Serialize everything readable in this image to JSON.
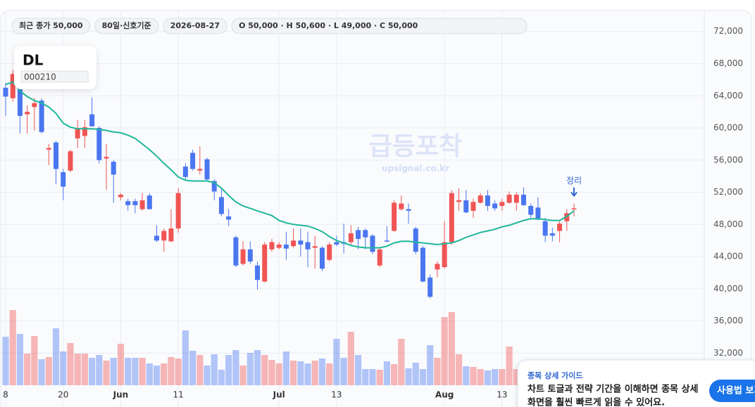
{
  "chart_data": {
    "type": "candlestick",
    "categories": [
      "8",
      null,
      null,
      null,
      null,
      null,
      null,
      null,
      "20",
      null,
      null,
      null,
      null,
      null,
      null,
      null,
      "Jun",
      null,
      null,
      null,
      null,
      null,
      null,
      null,
      "11",
      null,
      null,
      null,
      null,
      null,
      null,
      null,
      null,
      null,
      null,
      null,
      null,
      null,
      "Jul",
      null,
      null,
      null,
      null,
      null,
      null,
      null,
      "13",
      null,
      null,
      null,
      null,
      null,
      null,
      null,
      null,
      null,
      null,
      null,
      null,
      null,
      null,
      "Aug",
      null,
      null,
      null,
      null,
      null,
      null,
      null,
      "13",
      null,
      null,
      null,
      null,
      null,
      null,
      null,
      null,
      null,
      null
    ],
    "open": [
      65000,
      63700,
      65000,
      61700,
      62600,
      63400,
      57300,
      58200,
      54500,
      54700,
      58700,
      59000,
      61700,
      60000,
      56200,
      55800,
      51400,
      50900,
      50900,
      49900,
      51600,
      46600,
      46000,
      45900,
      47500,
      55200,
      56900,
      54700,
      56100,
      53400,
      51400,
      49000,
      46400,
      43100,
      44900,
      42900,
      40900,
      44900,
      45100,
      45500,
      45300,
      46000,
      45800,
      45100,
      45100,
      43600,
      45800,
      45800,
      45800,
      47300,
      47300,
      46600,
      42900,
      46000,
      47200,
      49900,
      49900,
      47500,
      45100,
      41400,
      42400,
      42700,
      45800,
      50800,
      51000,
      49700,
      50700,
      51600,
      50600,
      50300,
      50700,
      50700,
      51700,
      50300,
      50100,
      48400,
      46900,
      47200,
      48400,
      50000
    ],
    "high": [
      65600,
      67200,
      65600,
      62800,
      63700,
      63700,
      58000,
      58400,
      54900,
      57300,
      61000,
      61000,
      63800,
      60200,
      58000,
      56000,
      51900,
      51200,
      51200,
      51900,
      51900,
      47900,
      47500,
      49900,
      52500,
      55600,
      57300,
      57700,
      56300,
      53600,
      52500,
      49900,
      46600,
      45900,
      45900,
      43400,
      45800,
      46200,
      45800,
      47100,
      47500,
      47500,
      47100,
      46600,
      45300,
      45800,
      46600,
      48100,
      47900,
      47700,
      47500,
      46800,
      45100,
      47800,
      51000,
      51600,
      50600,
      47700,
      45300,
      41800,
      43400,
      48400,
      52300,
      52500,
      52300,
      51200,
      51900,
      52300,
      51000,
      51200,
      52100,
      52000,
      52600,
      50600,
      51400,
      48800,
      47600,
      48400,
      49900,
      50600
    ],
    "low": [
      61500,
      63250,
      59300,
      59300,
      59700,
      59300,
      55400,
      53000,
      51000,
      54500,
      57500,
      57500,
      60200,
      55600,
      52300,
      50700,
      51000,
      49700,
      49400,
      49700,
      49900,
      45800,
      44600,
      45800,
      47000,
      53600,
      54700,
      54200,
      53400,
      51000,
      49000,
      47800,
      42700,
      42900,
      43100,
      39900,
      40800,
      44600,
      44900,
      43600,
      45100,
      44000,
      42700,
      42500,
      42200,
      43400,
      45300,
      44400,
      45500,
      44900,
      44900,
      44300,
      42700,
      45800,
      47100,
      49700,
      48100,
      44300,
      40800,
      38800,
      41400,
      42500,
      45500,
      49700,
      49400,
      48800,
      50600,
      49700,
      49700,
      49700,
      50600,
      49700,
      50300,
      48800,
      48500,
      45800,
      45900,
      45800,
      47200,
      49000
    ],
    "close": [
      63900,
      66700,
      61500,
      62000,
      63100,
      59500,
      57500,
      54900,
      52700,
      57100,
      60000,
      60100,
      60200,
      56000,
      56400,
      54200,
      51700,
      50400,
      50400,
      51000,
      49900,
      46000,
      47200,
      47500,
      51900,
      53900,
      54900,
      54900,
      53600,
      52100,
      49300,
      48600,
      42900,
      44900,
      43400,
      41100,
      45500,
      45800,
      45500,
      45000,
      46000,
      45500,
      44900,
      45300,
      42500,
      45500,
      45500,
      45600,
      46900,
      46200,
      46400,
      44600,
      44900,
      45900,
      50700,
      50600,
      49700,
      44600,
      40900,
      39000,
      43100,
      45800,
      51900,
      51000,
      49500,
      50800,
      51600,
      50300,
      50000,
      50800,
      51700,
      51700,
      50400,
      49200,
      48600,
      46600,
      46600,
      48100,
      49400,
      50000
    ],
    "volume": [
      69,
      107,
      73,
      45,
      70,
      37,
      40,
      81,
      48,
      60,
      45,
      45,
      39,
      43,
      35,
      39,
      59,
      39,
      39,
      39,
      31,
      28,
      31,
      40,
      38,
      78,
      49,
      43,
      28,
      44,
      22,
      43,
      50,
      28,
      46,
      50,
      43,
      36,
      31,
      48,
      35,
      34,
      31,
      35,
      38,
      31,
      66,
      39,
      76,
      43,
      23,
      23,
      22,
      34,
      30,
      66,
      24,
      32,
      23,
      57,
      39,
      97,
      104,
      44,
      27,
      26,
      23,
      21,
      23,
      23,
      55,
      23,
      22,
      23,
      23,
      25,
      24,
      22,
      23,
      23
    ],
    "ma": [
      65400,
      65700,
      64600,
      63900,
      63400,
      63100,
      62600,
      61800,
      60600,
      60100,
      59900,
      59900,
      59900,
      59800,
      59700,
      59500,
      59400,
      59100,
      58700,
      58000,
      57300,
      56500,
      55600,
      54800,
      53900,
      53500,
      53400,
      53400,
      53400,
      53200,
      52500,
      51600,
      50800,
      50300,
      50000,
      49700,
      49400,
      49100,
      48500,
      48200,
      48000,
      47900,
      47800,
      47500,
      47100,
      46500,
      46000,
      45700,
      45400,
      45200,
      45100,
      45100,
      45100,
      45300,
      45700,
      45900,
      45900,
      45800,
      45700,
      45600,
      45500,
      45600,
      45700,
      46000,
      46400,
      46700,
      47000,
      47200,
      47400,
      47700,
      47900,
      48200,
      48500,
      48700,
      48700,
      48600,
      48500,
      48500,
      49000,
      49700
    ],
    "up_color": "#f05454",
    "down_color": "#4a76f0",
    "ma_color": "#1fb89a",
    "ylim": [
      25300,
      74600
    ],
    "yticks": [
      {
        "value": 32000,
        "label": "32,000"
      },
      {
        "value": 36000,
        "label": "36,000"
      },
      {
        "value": 40000,
        "label": "40,000"
      },
      {
        "value": 44000,
        "label": "44,000"
      },
      {
        "value": 48000,
        "label": "48,000"
      },
      {
        "value": 52000,
        "label": "52,000"
      },
      {
        "value": 56000,
        "label": "56,000"
      },
      {
        "value": 60000,
        "label": "60,000"
      },
      {
        "value": 64000,
        "label": "64,000"
      },
      {
        "value": 68000,
        "label": "68,000"
      },
      {
        "value": 72000,
        "label": "72,000"
      }
    ],
    "grid": true,
    "annotation": "정리"
  },
  "header": {
    "pills": [
      "최근 종가 50,000",
      "80일·신호기준",
      "2026-08-27",
      "O 50,000 · H 50,600 · L 49,000 · C 50,000"
    ]
  },
  "card": {
    "name": "DL",
    "code": "000210"
  },
  "watermark": {
    "title": "급등포착",
    "url": "upsignal.co.kr"
  },
  "guide": {
    "title": "종목 상세 가이드",
    "lines": [
      "차트 토글과 전략 기간을 이해하면 종목 상세",
      "화면을 훨씬 빠르게 읽을 수 있어요."
    ],
    "button": "사용법 보기"
  }
}
